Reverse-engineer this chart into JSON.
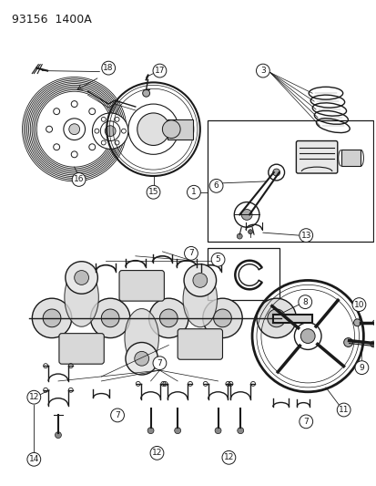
{
  "title": "93156  1400A",
  "bg_color": "#ffffff",
  "line_color": "#1a1a1a",
  "fig_width": 4.14,
  "fig_height": 5.33,
  "dpi": 100
}
